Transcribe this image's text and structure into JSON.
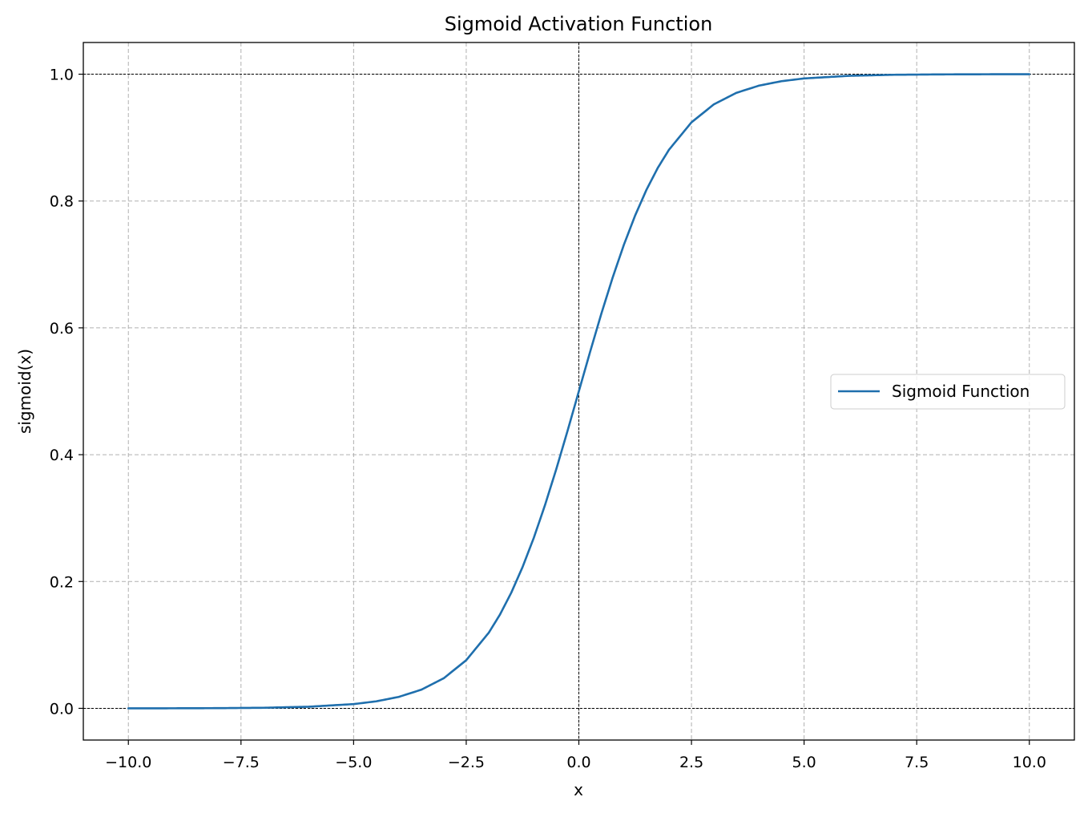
{
  "chart_data": {
    "type": "line",
    "title": "Sigmoid Activation Function",
    "xlabel": "x",
    "ylabel": "sigmoid(x)",
    "xlim": [
      -11,
      11
    ],
    "ylim": [
      -0.05,
      1.05
    ],
    "x_ticks": [
      -10.0,
      -7.5,
      -5.0,
      -2.5,
      0.0,
      2.5,
      5.0,
      7.5,
      10.0
    ],
    "x_tick_labels": [
      "−10.0",
      "−7.5",
      "−5.0",
      "−2.5",
      "0.0",
      "2.5",
      "5.0",
      "7.5",
      "10.0"
    ],
    "y_ticks": [
      0.0,
      0.2,
      0.4,
      0.6,
      0.8,
      1.0
    ],
    "y_tick_labels": [
      "0.0",
      "0.2",
      "0.4",
      "0.6",
      "0.8",
      "1.0"
    ],
    "grid": true,
    "grid_style": "dashed",
    "reference_lines": {
      "horizontal": [
        0.0,
        1.0
      ],
      "vertical": [
        0.0
      ],
      "color": "#000000",
      "style": "dashed"
    },
    "legend_position": "center-right",
    "series": [
      {
        "name": "Sigmoid Function",
        "color": "#1f6fad",
        "x": [
          -10,
          -9,
          -8,
          -7,
          -6,
          -5,
          -4.5,
          -4,
          -3.5,
          -3,
          -2.5,
          -2,
          -1.75,
          -1.5,
          -1.25,
          -1,
          -0.75,
          -0.5,
          -0.25,
          0,
          0.25,
          0.5,
          0.75,
          1,
          1.25,
          1.5,
          1.75,
          2,
          2.5,
          3,
          3.5,
          4,
          4.5,
          5,
          6,
          7,
          8,
          9,
          10
        ],
        "y": [
          0.0,
          0.0001,
          0.0003,
          0.0009,
          0.0025,
          0.0067,
          0.011,
          0.018,
          0.0293,
          0.0474,
          0.0759,
          0.1192,
          0.148,
          0.1824,
          0.2227,
          0.2689,
          0.3208,
          0.3775,
          0.4378,
          0.5,
          0.5622,
          0.6225,
          0.6792,
          0.7311,
          0.7773,
          0.8176,
          0.852,
          0.8808,
          0.9241,
          0.9526,
          0.9707,
          0.982,
          0.989,
          0.9933,
          0.9975,
          0.9991,
          0.9997,
          0.9999,
          1.0
        ]
      }
    ]
  }
}
